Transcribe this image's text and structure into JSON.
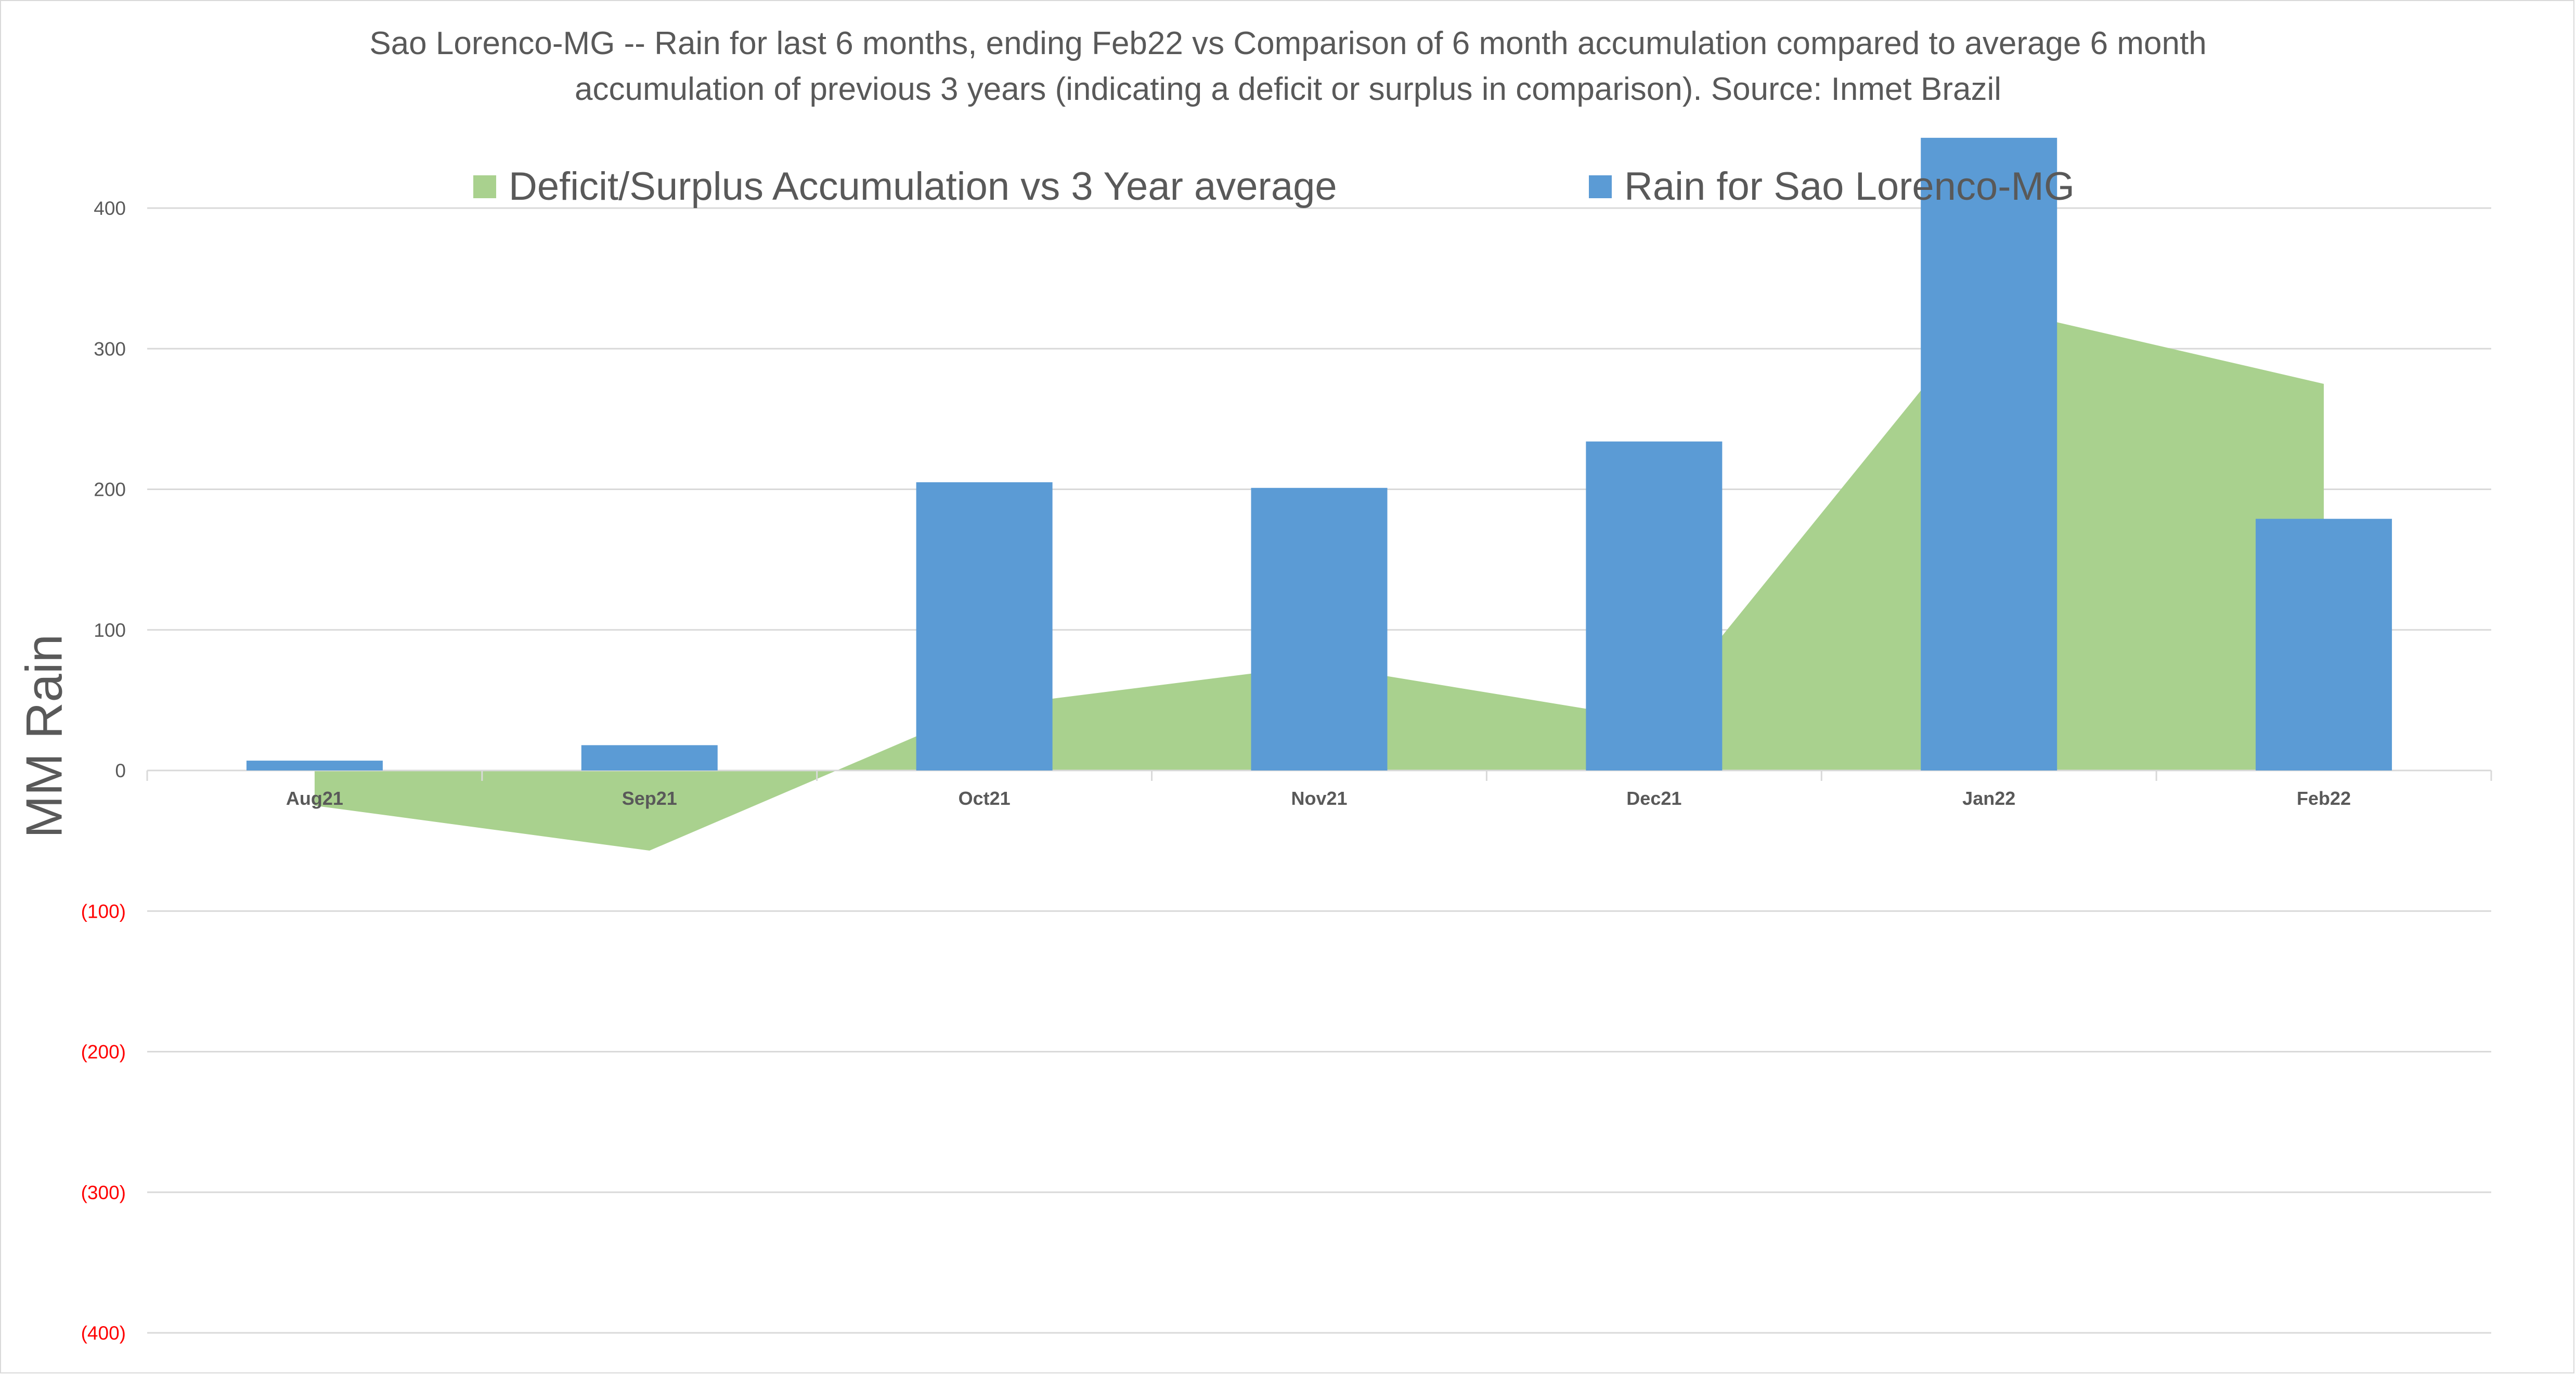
{
  "chart_data": {
    "type": "bar",
    "title_lines": [
      "Sao Lorenco-MG -- Rain for last 6 months, ending Feb22  vs Comparison of 6 month accumulation compared to average 6 month",
      "accumulation of previous 3 years  (indicating a deficit or surplus in comparison). Source: Inmet Brazil"
    ],
    "ylabel": "MM Rain",
    "xlabel": "",
    "ylim": [
      -400,
      450
    ],
    "y_ticks": [
      {
        "value": 400,
        "label": "400"
      },
      {
        "value": 300,
        "label": "300"
      },
      {
        "value": 200,
        "label": "200"
      },
      {
        "value": 100,
        "label": "100"
      },
      {
        "value": 0,
        "label": "0"
      },
      {
        "value": -100,
        "label": "(100)"
      },
      {
        "value": -200,
        "label": "(200)"
      },
      {
        "value": -300,
        "label": "(300)"
      },
      {
        "value": -400,
        "label": "(400)"
      }
    ],
    "negative_tick_color": "#ff0000",
    "positive_tick_color": "#595959",
    "grid": true,
    "legend_position": "top",
    "categories": [
      "Aug21",
      "Sep21",
      "Oct21",
      "Nov21",
      "Dec21",
      "Jan22",
      "Feb22"
    ],
    "series": [
      {
        "name": "Deficit/Surplus Accumulation vs 3 Year average",
        "type": "area",
        "color": "#a9d18e",
        "values": [
          -25,
          -57,
          45,
          75,
          36,
          330,
          275
        ]
      },
      {
        "name": "Rain for Sao Lorenco-MG",
        "type": "bar",
        "color": "#5b9bd5",
        "values": [
          7,
          18,
          205,
          201,
          234,
          450,
          179
        ]
      }
    ]
  }
}
